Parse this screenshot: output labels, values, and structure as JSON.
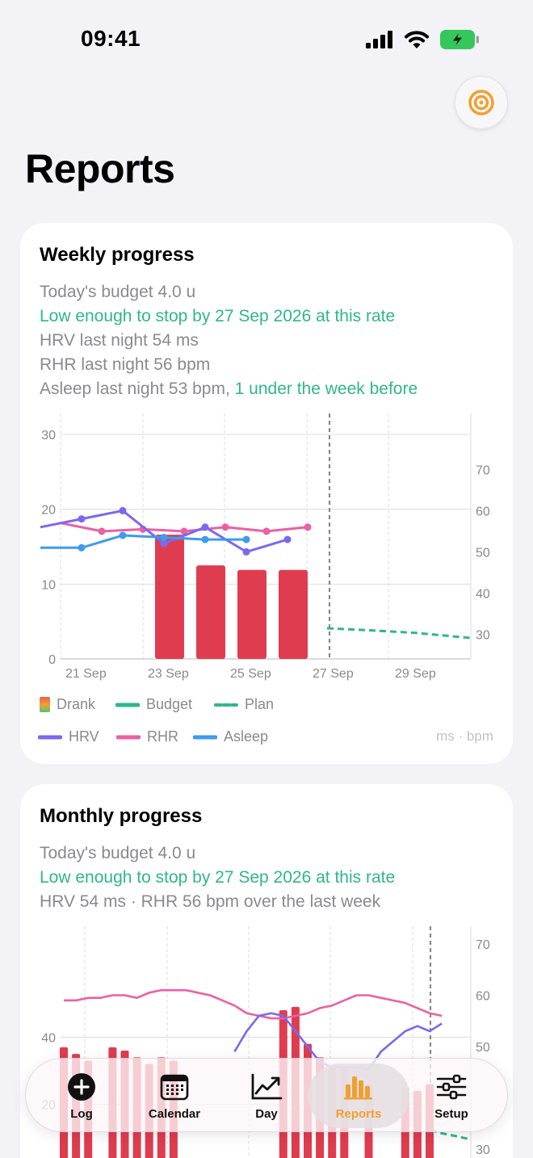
{
  "status": {
    "time": "09:41"
  },
  "page": {
    "title": "Reports"
  },
  "weekly": {
    "title": "Weekly progress",
    "budget": "Today's budget 4.0 u",
    "stop": "Low enough to stop by 27 Sep 2026 at this rate",
    "hrv": "HRV last night 54 ms",
    "rhr": "RHR last night 56 bpm",
    "asleep_prefix": "Asleep last night 53 bpm,",
    "asleep_delta": " 1 under the week before",
    "legend": {
      "drank": "Drank",
      "budget": "Budget",
      "plan": "Plan",
      "hrv": "HRV",
      "rhr": "RHR",
      "asleep": "Asleep",
      "units": "ms · bpm"
    },
    "colors": {
      "drank": "#e03c4f",
      "budget": "#2fb68e",
      "hrv": "#7b68ee",
      "rhr": "#ec5fa4",
      "asleep": "#3d9bf0"
    }
  },
  "monthly": {
    "title": "Monthly progress",
    "budget": "Today's budget 4.0 u",
    "stop": "Low enough to stop by 27 Sep 2026 at this rate",
    "summary": "HRV 54 ms · RHR 56 bpm over the last week"
  },
  "chart_data": [
    {
      "type": "bar",
      "x_ticks": [
        "21 Sep",
        "23 Sep",
        "25 Sep",
        "27 Sep",
        "29 Sep"
      ],
      "days": [
        "20 Sep",
        "21 Sep",
        "22 Sep",
        "23 Sep",
        "24 Sep",
        "25 Sep",
        "26 Sep",
        "27 Sep",
        "28 Sep",
        "29 Sep",
        "30 Sep"
      ],
      "y_left": {
        "ticks": [
          0,
          10,
          20,
          30
        ],
        "lim": [
          0,
          30
        ]
      },
      "y_right": {
        "ticks": [
          30,
          40,
          50,
          60,
          70
        ],
        "lim": [
          20,
          80
        ]
      },
      "series": [
        {
          "name": "Drank",
          "values": [
            null,
            null,
            null,
            16.6,
            12.5,
            11.9,
            11.9,
            null,
            null,
            null,
            null
          ]
        },
        {
          "name": "Plan",
          "values": [
            null,
            null,
            null,
            null,
            null,
            null,
            null,
            4.1,
            3.8,
            3.5,
            2.8
          ]
        },
        {
          "name": "HRV",
          "values": [
            56,
            58,
            60,
            52,
            56,
            50,
            53
          ]
        },
        {
          "name": "RHR",
          "values": [
            57,
            55,
            55.5,
            55,
            56,
            55,
            56
          ]
        },
        {
          "name": "Asleep",
          "values": [
            51,
            51,
            54,
            53.5,
            53,
            53
          ]
        }
      ],
      "today_marker": "27 Sep",
      "grid": true,
      "legend_position": "bottom"
    },
    {
      "type": "bar",
      "y_left": {
        "ticks": [
          20,
          40
        ],
        "lim": [
          0,
          60
        ]
      },
      "y_right": {
        "ticks": [
          30,
          50,
          60,
          70
        ],
        "lim": [
          26,
          74
        ]
      },
      "series": [
        {
          "name": "Drank",
          "values": [
            37,
            35,
            33,
            null,
            37,
            36,
            34,
            32,
            34,
            33,
            null,
            null,
            null,
            null,
            null,
            null,
            null,
            null,
            48,
            49,
            38,
            34,
            31,
            31,
            null,
            26,
            null,
            null,
            25,
            24,
            26
          ]
        },
        {
          "name": "RHR",
          "values": [
            59,
            59,
            59.5,
            59.5,
            60,
            60,
            59.5,
            60.5,
            61,
            61,
            61,
            60.5,
            60,
            59,
            58,
            56.5,
            56,
            55.5,
            55.5,
            56,
            56.5,
            57.5,
            58,
            59,
            60,
            60,
            59.5,
            59,
            58.5,
            57.5,
            56.5,
            56
          ]
        },
        {
          "name": "HRV",
          "values": [
            null,
            null,
            null,
            null,
            null,
            null,
            null,
            null,
            null,
            null,
            null,
            null,
            null,
            null,
            49,
            53,
            56,
            56.5,
            56,
            53,
            50,
            47,
            46,
            46,
            46,
            45.5,
            49,
            51,
            53,
            54,
            53,
            54.5
          ]
        }
      ],
      "today_marker": "end of range",
      "grid": true
    }
  ],
  "tabs": [
    {
      "label": "Log",
      "icon": "add-circle-icon"
    },
    {
      "label": "Calendar",
      "icon": "calendar-icon"
    },
    {
      "label": "Day",
      "icon": "trend-chart-icon"
    },
    {
      "label": "Reports",
      "icon": "bar-chart-icon"
    },
    {
      "label": "Setup",
      "icon": "sliders-icon"
    }
  ]
}
